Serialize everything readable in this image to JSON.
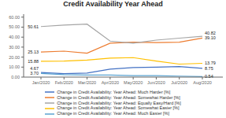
{
  "chart_data": {
    "type": "line",
    "title": "Credit Availability Year Ahead",
    "categories": [
      "Jan/2020",
      "Feb/2020",
      "Mar/2020",
      "Apr/2020",
      "May/2020",
      "Jun/2020",
      "Jul/2020",
      "Aug/2020"
    ],
    "series": [
      {
        "name": "Change in Credit Availability: Year Ahead: Much Harder [%]",
        "color": "#4472C4",
        "values": [
          4.67,
          3.5,
          4.0,
          8.0,
          9.5,
          10.0,
          10.5,
          8.75
        ]
      },
      {
        "name": "Change in Credit Availability: Year Ahead: Somewhat Harder [%]",
        "color": "#ED7D31",
        "values": [
          25.13,
          26.0,
          24.0,
          34.0,
          35.0,
          34.5,
          35.0,
          39.1
        ]
      },
      {
        "name": "Change in Credit Availability: Year Ahead: Equally Easy/Hard [%]",
        "color": "#A5A5A5",
        "values": [
          50.61,
          52.0,
          53.0,
          36.0,
          34.0,
          37.0,
          39.0,
          40.82
        ]
      },
      {
        "name": "Change in Credit Availability: Year Ahead: Somewhat Easier [%]",
        "color": "#FFC000",
        "values": [
          15.88,
          16.0,
          17.0,
          19.0,
          19.5,
          16.0,
          13.0,
          13.79
        ]
      },
      {
        "name": "Change in Credit Availability: Year Ahead: Much Easier [%]",
        "color": "#5BA3D0",
        "values": [
          3.7,
          2.5,
          2.0,
          2.0,
          1.5,
          1.5,
          1.0,
          0.54
        ]
      }
    ],
    "annotations": [
      {
        "x": "Jan/2020",
        "y": 50.61,
        "text": "50.61"
      },
      {
        "x": "Jan/2020",
        "y": 25.13,
        "text": "25.13"
      },
      {
        "x": "Jan/2020",
        "y": 15.88,
        "text": "15.88"
      },
      {
        "x": "Jan/2020",
        "y": 4.67,
        "text": "4.67"
      },
      {
        "x": "Jan/2020",
        "y": 3.7,
        "text": "3.70"
      },
      {
        "x": "Aug/2020",
        "y": 40.82,
        "text": "40.82"
      },
      {
        "x": "Aug/2020",
        "y": 39.1,
        "text": "39.10"
      },
      {
        "x": "Aug/2020",
        "y": 13.79,
        "text": "13.79"
      },
      {
        "x": "Aug/2020",
        "y": 8.75,
        "text": "8.75"
      },
      {
        "x": "Aug/2020",
        "y": 0.54,
        "text": "0.54"
      }
    ],
    "ylim": [
      0,
      63
    ],
    "yticks": [
      {
        "value": 0,
        "label": "0.00"
      },
      {
        "value": 10,
        "label": "10.00"
      },
      {
        "value": 20,
        "label": "20.00"
      },
      {
        "value": 30,
        "label": "30.00"
      },
      {
        "value": 40,
        "label": "40.00"
      },
      {
        "value": 50,
        "label": "50.00"
      },
      {
        "value": 60,
        "label": "60.00"
      }
    ],
    "grid": false,
    "legend": "bottom"
  }
}
